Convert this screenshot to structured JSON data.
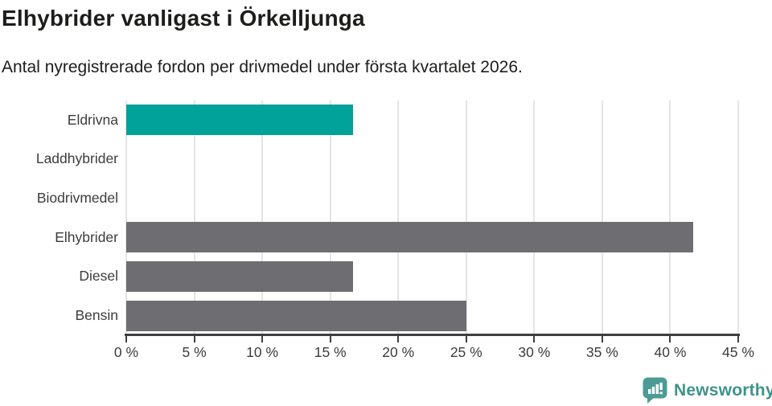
{
  "header": {
    "title": "Elhybrider vanligast i Örkelljunga",
    "subtitle": "Antal nyregistrerade fordon per drivmedel under första kvartalet 2026."
  },
  "chart_data": {
    "type": "bar",
    "orientation": "horizontal",
    "title": "Elhybrider vanligast i Örkelljunga",
    "subtitle": "Antal nyregistrerade fordon per drivmedel under första kvartalet 2026.",
    "categories": [
      "Eldrivna",
      "Laddhybrider",
      "Biodrivmedel",
      "Elhybrider",
      "Diesel",
      "Bensin"
    ],
    "values": [
      16.7,
      0,
      0,
      41.7,
      16.7,
      25
    ],
    "unit": "%",
    "xlim": [
      0,
      45
    ],
    "tick_step": 5,
    "tick_values": [
      0,
      5,
      10,
      15,
      20,
      25,
      30,
      35,
      40,
      45
    ],
    "tick_labels": [
      "0 %",
      "5 %",
      "10 %",
      "15 %",
      "20 %",
      "25 %",
      "30 %",
      "35 %",
      "40 %",
      "45 %"
    ],
    "bar_colors": [
      "#00a29a",
      "#6d6d72",
      "#6d6d72",
      "#6d6d72",
      "#6d6d72",
      "#6d6d72"
    ],
    "colors": {
      "highlight": "#00a29a",
      "default": "#6d6d72",
      "gridline": "#e4e4e4",
      "axis": "#3f3f3f",
      "tick_label": "#3c3c3c"
    },
    "grid": true,
    "legend": false
  },
  "attribution": {
    "brand": "Newsworthy",
    "brand_color": "#3f928b",
    "icon_color": "#4c9b94"
  }
}
